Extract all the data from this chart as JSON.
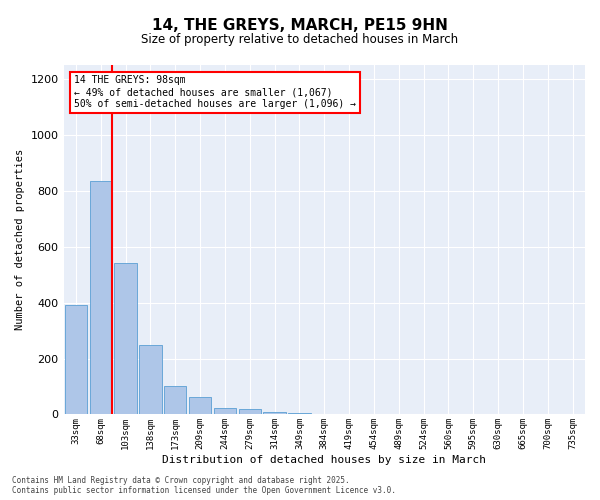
{
  "title_line1": "14, THE GREYS, MARCH, PE15 9HN",
  "title_line2": "Size of property relative to detached houses in March",
  "xlabel": "Distribution of detached houses by size in March",
  "ylabel": "Number of detached properties",
  "bar_labels": [
    "33sqm",
    "68sqm",
    "103sqm",
    "138sqm",
    "173sqm",
    "209sqm",
    "244sqm",
    "279sqm",
    "314sqm",
    "349sqm",
    "384sqm",
    "419sqm",
    "454sqm",
    "489sqm",
    "524sqm",
    "560sqm",
    "595sqm",
    "630sqm",
    "665sqm",
    "700sqm",
    "735sqm"
  ],
  "bar_values": [
    390,
    835,
    540,
    248,
    100,
    62,
    22,
    18,
    9,
    5,
    2,
    0,
    0,
    0,
    0,
    0,
    0,
    0,
    0,
    0,
    0
  ],
  "bar_color": "#aec6e8",
  "bar_edge_color": "#5a9fd4",
  "vline_color": "red",
  "ylim": [
    0,
    1250
  ],
  "yticks": [
    0,
    200,
    400,
    600,
    800,
    1000,
    1200
  ],
  "annotation_text": "14 THE GREYS: 98sqm\n← 49% of detached houses are smaller (1,067)\n50% of semi-detached houses are larger (1,096) →",
  "annotation_box_color": "red",
  "bg_color": "#e8eef8",
  "footer_line1": "Contains HM Land Registry data © Crown copyright and database right 2025.",
  "footer_line2": "Contains public sector information licensed under the Open Government Licence v3.0."
}
